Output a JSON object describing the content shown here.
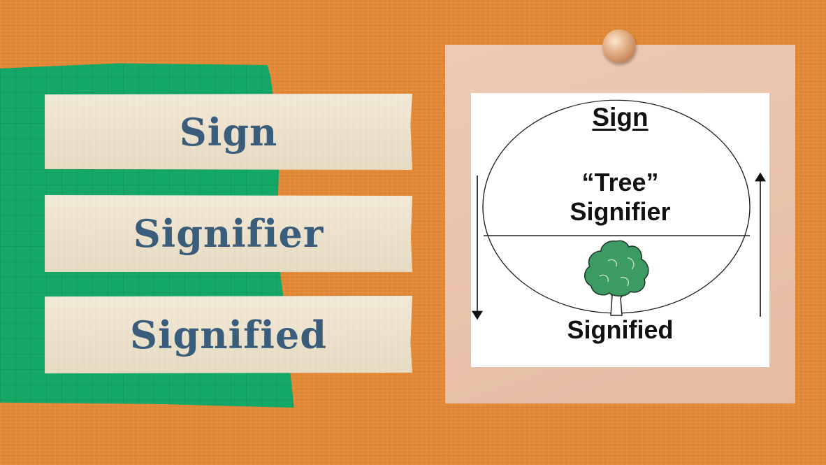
{
  "labels": [
    {
      "text": "Sign"
    },
    {
      "text": "Signifier"
    },
    {
      "text": "Signified"
    }
  ],
  "diagram": {
    "title": "Sign",
    "upper_word": "“Tree”",
    "upper_label": "Signifier",
    "lower_label": "Signified",
    "image_icon": "tree-icon"
  },
  "colors": {
    "background": "#e68a36",
    "green_paper": "#13a865",
    "tape": "#eee2c9",
    "label_text": "#3a5d7c",
    "note": "#ecc2a9",
    "tree_green": "#3c9b62"
  }
}
